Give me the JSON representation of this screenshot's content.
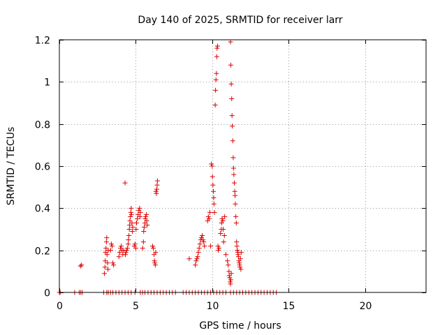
{
  "chart_data": {
    "type": "scatter",
    "title": "Day 140 of 2025, SRMTID for receiver larr",
    "xlabel": "GPS time / hours",
    "ylabel": "SRMTID / TECUs",
    "xlim": [
      0,
      24
    ],
    "ylim": [
      0,
      1.2
    ],
    "xticks": [
      0,
      5,
      10,
      15,
      20
    ],
    "xtick_labels": [
      "0",
      "5",
      "10",
      "15",
      "20"
    ],
    "yticks": [
      0,
      0.2,
      0.4,
      0.6,
      0.8,
      1,
      1.2
    ],
    "ytick_labels": [
      "0",
      "0.2",
      "0.4",
      "0.6",
      "0.8",
      "1",
      "1.2"
    ],
    "grid": true,
    "marker": "+",
    "color": "#e00000",
    "series": [
      {
        "name": "larr",
        "points": [
          [
            0.0,
            0
          ],
          [
            0.05,
            0
          ],
          [
            1.0,
            0
          ],
          [
            1.3,
            0
          ],
          [
            1.4,
            0
          ],
          [
            1.5,
            0
          ],
          [
            1.38,
            0.125
          ],
          [
            1.45,
            0.13
          ],
          [
            2.9,
            0
          ],
          [
            3.1,
            0
          ],
          [
            3.2,
            0
          ],
          [
            3.35,
            0
          ],
          [
            3.5,
            0
          ],
          [
            3.7,
            0
          ],
          [
            3.9,
            0
          ],
          [
            4.1,
            0
          ],
          [
            4.3,
            0
          ],
          [
            4.5,
            0
          ],
          [
            4.7,
            0
          ],
          [
            4.95,
            0
          ],
          [
            5.3,
            0
          ],
          [
            5.45,
            0
          ],
          [
            5.6,
            0
          ],
          [
            5.8,
            0
          ],
          [
            6.0,
            0
          ],
          [
            6.2,
            0
          ],
          [
            6.4,
            0
          ],
          [
            6.6,
            0
          ],
          [
            6.8,
            0
          ],
          [
            7.0,
            0
          ],
          [
            7.2,
            0
          ],
          [
            7.4,
            0
          ],
          [
            7.6,
            0
          ],
          [
            8.1,
            0
          ],
          [
            8.3,
            0
          ],
          [
            8.5,
            0
          ],
          [
            8.7,
            0
          ],
          [
            8.9,
            0
          ],
          [
            9.1,
            0
          ],
          [
            9.3,
            0
          ],
          [
            9.5,
            0
          ],
          [
            9.7,
            0
          ],
          [
            9.9,
            0
          ],
          [
            10.1,
            0
          ],
          [
            10.3,
            0
          ],
          [
            10.5,
            0
          ],
          [
            10.7,
            0
          ],
          [
            10.9,
            0
          ],
          [
            11.2,
            0
          ],
          [
            11.4,
            0
          ],
          [
            11.6,
            0
          ],
          [
            11.8,
            0
          ],
          [
            12.0,
            0
          ],
          [
            12.2,
            0
          ],
          [
            12.4,
            0
          ],
          [
            12.6,
            0
          ],
          [
            12.8,
            0
          ],
          [
            13.0,
            0
          ],
          [
            13.2,
            0
          ],
          [
            13.4,
            0
          ],
          [
            13.6,
            0
          ],
          [
            13.8,
            0
          ],
          [
            14.0,
            0
          ],
          [
            14.2,
            0
          ],
          [
            2.95,
            0.09
          ],
          [
            2.98,
            0.12
          ],
          [
            3.0,
            0.15
          ],
          [
            3.02,
            0.19
          ],
          [
            3.05,
            0.21
          ],
          [
            3.08,
            0.24
          ],
          [
            3.1,
            0.26
          ],
          [
            3.12,
            0.18
          ],
          [
            3.15,
            0.14
          ],
          [
            3.18,
            0.11
          ],
          [
            3.2,
            0.2
          ],
          [
            3.35,
            0.2
          ],
          [
            3.4,
            0.23
          ],
          [
            3.45,
            0.22
          ],
          [
            3.5,
            0.14
          ],
          [
            3.55,
            0.13
          ],
          [
            3.9,
            0.17
          ],
          [
            3.95,
            0.19
          ],
          [
            4.0,
            0.21
          ],
          [
            4.05,
            0.22
          ],
          [
            4.1,
            0.2
          ],
          [
            4.15,
            0.18
          ],
          [
            4.2,
            0.2
          ],
          [
            4.3,
            0.52
          ],
          [
            4.32,
            0.18
          ],
          [
            4.35,
            0.19
          ],
          [
            4.4,
            0.2
          ],
          [
            4.45,
            0.21
          ],
          [
            4.5,
            0.23
          ],
          [
            4.52,
            0.25
          ],
          [
            4.55,
            0.27
          ],
          [
            4.58,
            0.3
          ],
          [
            4.6,
            0.32
          ],
          [
            4.62,
            0.34
          ],
          [
            4.65,
            0.36
          ],
          [
            4.68,
            0.38
          ],
          [
            4.7,
            0.4
          ],
          [
            4.72,
            0.37
          ],
          [
            4.75,
            0.33
          ],
          [
            4.78,
            0.29
          ],
          [
            4.8,
            0.31
          ],
          [
            4.9,
            0.22
          ],
          [
            4.95,
            0.23
          ],
          [
            5.0,
            0.21
          ],
          [
            5.02,
            0.3
          ],
          [
            5.05,
            0.33
          ],
          [
            5.1,
            0.35
          ],
          [
            5.15,
            0.37
          ],
          [
            5.2,
            0.39
          ],
          [
            5.25,
            0.4
          ],
          [
            5.28,
            0.36
          ],
          [
            5.3,
            0.38
          ],
          [
            5.45,
            0.21
          ],
          [
            5.5,
            0.24
          ],
          [
            5.52,
            0.29
          ],
          [
            5.55,
            0.31
          ],
          [
            5.6,
            0.33
          ],
          [
            5.62,
            0.35
          ],
          [
            5.65,
            0.36
          ],
          [
            5.7,
            0.37
          ],
          [
            5.72,
            0.34
          ],
          [
            5.75,
            0.32
          ],
          [
            6.1,
            0.22
          ],
          [
            6.15,
            0.21
          ],
          [
            6.2,
            0.18
          ],
          [
            6.22,
            0.15
          ],
          [
            6.25,
            0.14
          ],
          [
            6.28,
            0.13
          ],
          [
            6.3,
            0.19
          ],
          [
            6.32,
            0.48
          ],
          [
            6.35,
            0.47
          ],
          [
            6.38,
            0.49
          ],
          [
            6.4,
            0.51
          ],
          [
            6.42,
            0.53
          ],
          [
            8.5,
            0.16
          ],
          [
            8.9,
            0.13
          ],
          [
            8.95,
            0.15
          ],
          [
            9.0,
            0.16
          ],
          [
            9.05,
            0.17
          ],
          [
            9.1,
            0.19
          ],
          [
            9.15,
            0.21
          ],
          [
            9.2,
            0.23
          ],
          [
            9.25,
            0.25
          ],
          [
            9.3,
            0.26
          ],
          [
            9.35,
            0.27
          ],
          [
            9.4,
            0.25
          ],
          [
            9.45,
            0.24
          ],
          [
            9.5,
            0.22
          ],
          [
            9.7,
            0.34
          ],
          [
            9.75,
            0.36
          ],
          [
            9.8,
            0.35
          ],
          [
            9.85,
            0.38
          ],
          [
            9.9,
            0.22
          ],
          [
            9.95,
            0.61
          ],
          [
            10.0,
            0.6
          ],
          [
            10.02,
            0.55
          ],
          [
            10.05,
            0.51
          ],
          [
            10.08,
            0.48
          ],
          [
            10.1,
            0.45
          ],
          [
            10.12,
            0.42
          ],
          [
            10.15,
            0.38
          ],
          [
            10.2,
            0.89
          ],
          [
            10.22,
            0.96
          ],
          [
            10.25,
            1.01
          ],
          [
            10.28,
            1.04
          ],
          [
            10.3,
            1.12
          ],
          [
            10.32,
            1.16
          ],
          [
            10.35,
            1.17
          ],
          [
            10.38,
            0.22
          ],
          [
            10.4,
            0.2
          ],
          [
            10.45,
            0.21
          ],
          [
            10.55,
            0.28
          ],
          [
            10.6,
            0.3
          ],
          [
            10.62,
            0.33
          ],
          [
            10.65,
            0.35
          ],
          [
            10.7,
            0.34
          ],
          [
            10.72,
            0.3
          ],
          [
            10.75,
            0.24
          ],
          [
            10.8,
            0.27
          ],
          [
            10.82,
            0.36
          ],
          [
            10.9,
            0.18
          ],
          [
            11.0,
            0.15
          ],
          [
            11.05,
            0.13
          ],
          [
            11.1,
            0.1
          ],
          [
            11.12,
            0.08
          ],
          [
            11.15,
            0.07
          ],
          [
            11.18,
            0.05
          ],
          [
            11.2,
            0.04
          ],
          [
            11.22,
            0.06
          ],
          [
            11.25,
            0.09
          ],
          [
            11.2,
            1.19
          ],
          [
            11.22,
            1.08
          ],
          [
            11.25,
            0.99
          ],
          [
            11.28,
            0.92
          ],
          [
            11.3,
            0.84
          ],
          [
            11.32,
            0.79
          ],
          [
            11.35,
            0.72
          ],
          [
            11.38,
            0.64
          ],
          [
            11.4,
            0.59
          ],
          [
            11.42,
            0.56
          ],
          [
            11.45,
            0.52
          ],
          [
            11.48,
            0.48
          ],
          [
            11.5,
            0.46
          ],
          [
            11.52,
            0.42
          ],
          [
            11.55,
            0.36
          ],
          [
            11.58,
            0.33
          ],
          [
            11.6,
            0.24
          ],
          [
            11.62,
            0.22
          ],
          [
            11.65,
            0.2
          ],
          [
            11.68,
            0.19
          ],
          [
            11.7,
            0.18
          ],
          [
            11.72,
            0.17
          ],
          [
            11.75,
            0.15
          ],
          [
            11.78,
            0.14
          ],
          [
            11.8,
            0.13
          ],
          [
            11.82,
            0.12
          ],
          [
            11.85,
            0.16
          ],
          [
            11.88,
            0.11
          ],
          [
            11.9,
            0.19
          ]
        ]
      }
    ]
  }
}
